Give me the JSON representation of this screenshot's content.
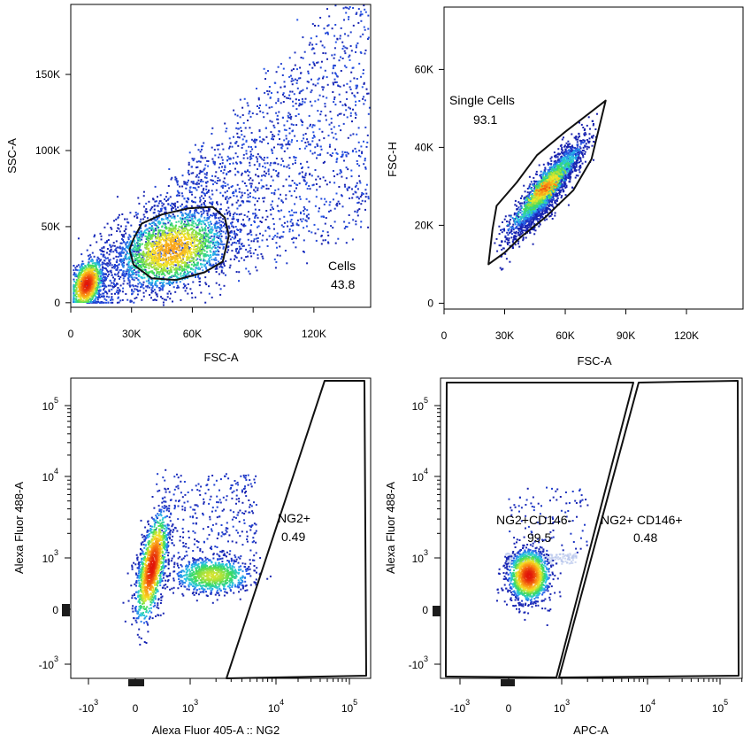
{
  "chart_data": [
    {
      "type": "scatter",
      "subtype": "flow-cytometry-density",
      "xlabel": "FSC-A",
      "ylabel": "SSC-A",
      "xlim": [
        0,
        148000
      ],
      "ylim": [
        -3000,
        196000
      ],
      "x_ticks": [
        {
          "value": 0,
          "label": "0"
        },
        {
          "value": 30000,
          "label": "30K"
        },
        {
          "value": 60000,
          "label": "60K"
        },
        {
          "value": 90000,
          "label": "90K"
        },
        {
          "value": 120000,
          "label": "120K"
        }
      ],
      "y_ticks": [
        {
          "value": 0,
          "label": "0"
        },
        {
          "value": 50000,
          "label": "50K"
        },
        {
          "value": 100000,
          "label": "100K"
        },
        {
          "value": 150000,
          "label": "150K"
        }
      ],
      "gate": {
        "name": "Cells",
        "percent": "43.8",
        "points": [
          [
            31000,
            42000
          ],
          [
            35000,
            52000
          ],
          [
            45000,
            58000
          ],
          [
            58000,
            62000
          ],
          [
            70000,
            63000
          ],
          [
            76000,
            56000
          ],
          [
            78000,
            44000
          ],
          [
            75000,
            27000
          ],
          [
            66000,
            20000
          ],
          [
            52000,
            15000
          ],
          [
            40000,
            16000
          ],
          [
            31000,
            25000
          ],
          [
            29000,
            35000
          ]
        ]
      },
      "populations": [
        {
          "cx": 8000,
          "cy": 12000,
          "sx": 4000,
          "sy": 8000,
          "weight": 0.22,
          "peak": true
        },
        {
          "cx": 50000,
          "cy": 35000,
          "sx": 15000,
          "sy": 14000,
          "weight": 0.45,
          "peak": false
        }
      ]
    },
    {
      "type": "scatter",
      "subtype": "flow-cytometry-density",
      "xlabel": "FSC-A",
      "ylabel": "FSC-H",
      "xlim": [
        0,
        148000
      ],
      "ylim": [
        -1500,
        76000
      ],
      "x_ticks": [
        {
          "value": 0,
          "label": "0"
        },
        {
          "value": 30000,
          "label": "30K"
        },
        {
          "value": 60000,
          "label": "60K"
        },
        {
          "value": 90000,
          "label": "90K"
        },
        {
          "value": 120000,
          "label": "120K"
        }
      ],
      "y_ticks": [
        {
          "value": 0,
          "label": "0"
        },
        {
          "value": 20000,
          "label": "20K"
        },
        {
          "value": 40000,
          "label": "40K"
        },
        {
          "value": 60000,
          "label": "60K"
        }
      ],
      "gate": {
        "name": "Single Cells",
        "percent": "93.1",
        "points": [
          [
            22000,
            10000
          ],
          [
            24000,
            19000
          ],
          [
            26000,
            25000
          ],
          [
            36000,
            31000
          ],
          [
            46000,
            38000
          ],
          [
            60000,
            44000
          ],
          [
            80000,
            52000
          ],
          [
            73000,
            37000
          ],
          [
            64000,
            29000
          ],
          [
            50000,
            22000
          ],
          [
            38000,
            17000
          ],
          [
            30000,
            13000
          ]
        ]
      },
      "populations": [
        {
          "along_start": [
            30000,
            17000
          ],
          "along_end": [
            70000,
            42000
          ],
          "spread": 2500,
          "weight": 1.0
        }
      ]
    },
    {
      "type": "scatter",
      "subtype": "flow-cytometry-density-biexponential",
      "xlabel": "Alexa Fluor 405-A :: NG2",
      "ylabel": "Alexa Fluor 488-A",
      "x_ticks": [
        {
          "value": -1000,
          "base": "-10",
          "exp": "3"
        },
        {
          "value": 0,
          "base": "0",
          "exp": ""
        },
        {
          "value": 1000,
          "base": "10",
          "exp": "3"
        },
        {
          "value": 10000,
          "base": "10",
          "exp": "4"
        },
        {
          "value": 100000,
          "base": "10",
          "exp": "5"
        }
      ],
      "y_ticks": [
        {
          "value": -1000,
          "base": "-10",
          "exp": "3"
        },
        {
          "value": 0,
          "base": "0",
          "exp": ""
        },
        {
          "value": 1000,
          "base": "10",
          "exp": "3"
        },
        {
          "value": 10000,
          "base": "10",
          "exp": "4"
        },
        {
          "value": 100000,
          "base": "10",
          "exp": "5"
        }
      ],
      "gates": [
        {
          "name": "NG2+",
          "percent": "0.49",
          "label_pos": "right-middle"
        }
      ]
    },
    {
      "type": "scatter",
      "subtype": "flow-cytometry-density-biexponential",
      "xlabel": "APC-A",
      "ylabel": "Alexa Fluor 488-A",
      "x_ticks": [
        {
          "value": -1000,
          "base": "-10",
          "exp": "3"
        },
        {
          "value": 0,
          "base": "0",
          "exp": ""
        },
        {
          "value": 1000,
          "base": "10",
          "exp": "3"
        },
        {
          "value": 10000,
          "base": "10",
          "exp": "4"
        },
        {
          "value": 100000,
          "base": "10",
          "exp": "5"
        }
      ],
      "y_ticks": [
        {
          "value": -1000,
          "base": "-10",
          "exp": "3"
        },
        {
          "value": 0,
          "base": "0",
          "exp": ""
        },
        {
          "value": 1000,
          "base": "10",
          "exp": "3"
        },
        {
          "value": 10000,
          "base": "10",
          "exp": "4"
        },
        {
          "value": 100000,
          "base": "10",
          "exp": "5"
        }
      ],
      "gates": [
        {
          "name": "NG2+CD146-",
          "percent": "99.5",
          "label_pos": "left"
        },
        {
          "name": "NG2+ CD146+",
          "percent": "0.48",
          "label_pos": "right"
        }
      ]
    }
  ]
}
